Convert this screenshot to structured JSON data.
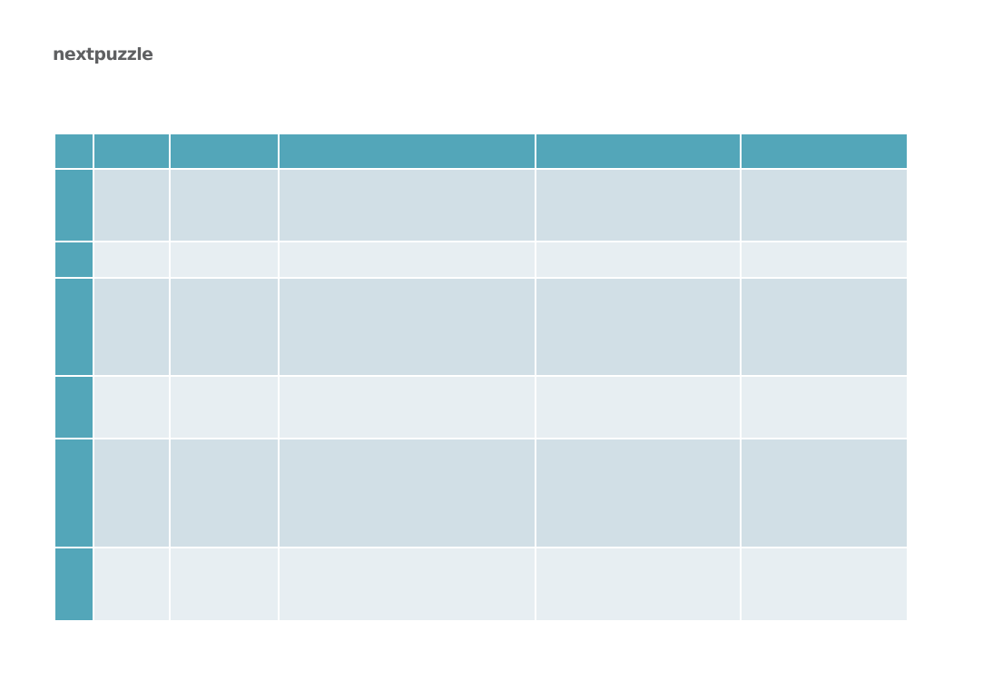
{
  "brand": {
    "logo_text": "nextpuzzle"
  },
  "table": {
    "header": [
      "",
      "",
      "",
      "",
      "",
      ""
    ],
    "rows": [
      {
        "shade": "dark",
        "cells": [
          "",
          "",
          "",
          "",
          "",
          ""
        ]
      },
      {
        "shade": "light",
        "cells": [
          "",
          "",
          "",
          "",
          "",
          ""
        ]
      },
      {
        "shade": "dark",
        "cells": [
          "",
          "",
          "",
          "",
          "",
          ""
        ]
      },
      {
        "shade": "light",
        "cells": [
          "",
          "",
          "",
          "",
          "",
          ""
        ]
      },
      {
        "shade": "dark",
        "cells": [
          "",
          "",
          "",
          "",
          "",
          ""
        ]
      },
      {
        "shade": "light",
        "cells": [
          "",
          "",
          "",
          "",
          "",
          ""
        ]
      }
    ]
  },
  "colors": {
    "header_teal": "#53a6b9",
    "row_dark": "#d1dfe6",
    "row_light": "#e7eef2",
    "logo_gray": "#5f6062"
  }
}
